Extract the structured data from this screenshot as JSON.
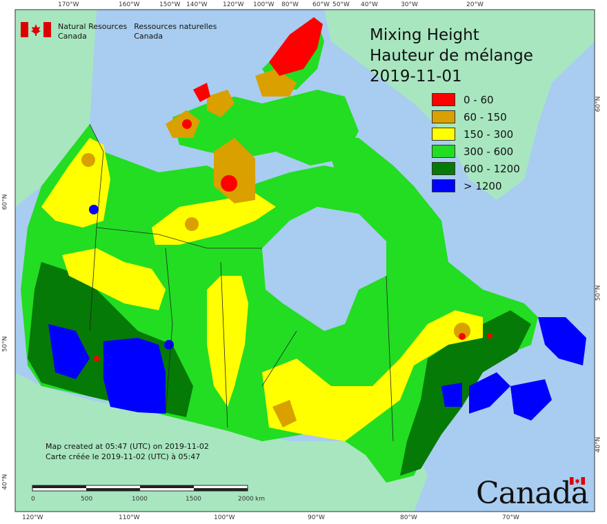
{
  "map": {
    "title_en": "Mixing Height",
    "title_fr": "Hauteur de mélange",
    "date": "2019-11-01",
    "agency_en_line1": "Natural Resources",
    "agency_en_line2": "Canada",
    "agency_fr_line1": "Ressources naturelles",
    "agency_fr_line2": "Canada",
    "credit_en": "Map created at 05:47 (UTC) on 2019-11-02",
    "credit_fr": "Carte créée le 2019-11-02 (UTC) à 05:47",
    "wordmark": "Canada",
    "legend": [
      {
        "label": "0 - 60",
        "color": "#ff0000"
      },
      {
        "label": "60 - 150",
        "color": "#d9a000"
      },
      {
        "label": "150 - 300",
        "color": "#ffff00"
      },
      {
        "label": "300 - 600",
        "color": "#22dd22"
      },
      {
        "label": "600 - 1200",
        "color": "#067a06"
      },
      {
        "label": "> 1200",
        "color": "#0000ff"
      }
    ],
    "scale": {
      "ticks": [
        "0",
        "500",
        "1000",
        "1500",
        "2000"
      ],
      "unit": "km"
    },
    "top_ticks": [
      "170°W",
      "160°W",
      "150°W",
      "140°W",
      "120°W",
      "100°W",
      "80°W",
      "60°W",
      "50°W",
      "40°W",
      "30°W",
      "20°W"
    ],
    "bottom_ticks": [
      "120°W",
      "110°W",
      "100°W",
      "90°W",
      "80°W",
      "70°W"
    ],
    "left_ticks": [
      "60°N",
      "50°N",
      "40°N"
    ],
    "right_ticks": [
      "60°N",
      "50°N",
      "40°N"
    ],
    "colors": {
      "ocean": "#a8cdf0",
      "other_land": "#a8e6c0",
      "frame": "#333333"
    }
  }
}
